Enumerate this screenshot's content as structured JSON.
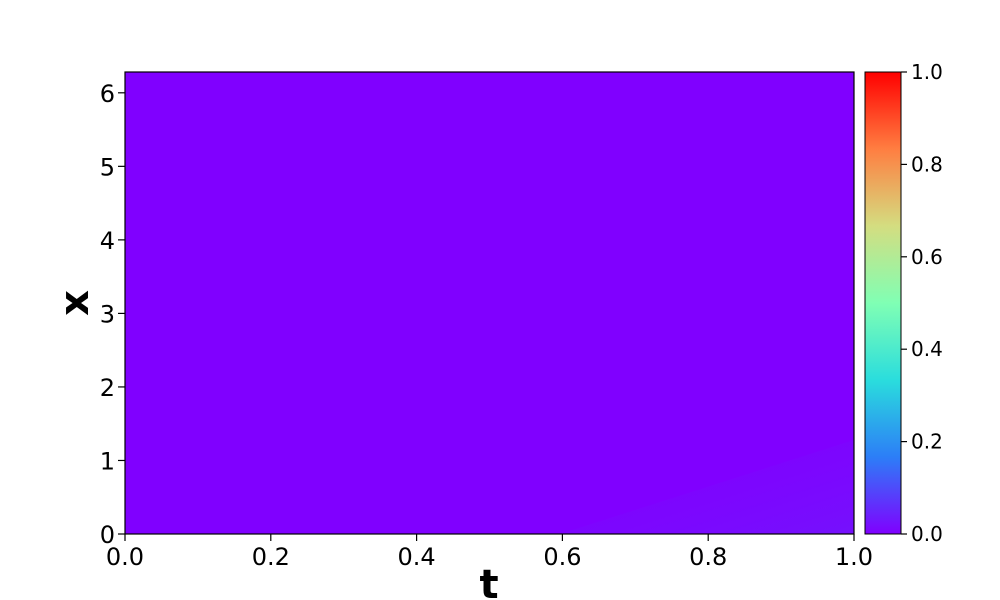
{
  "chart_data": {
    "type": "heatmap",
    "title": "",
    "xlabel": "t",
    "ylabel": "x",
    "xlim": [
      0.0,
      1.0
    ],
    "ylim": [
      0.0,
      6.283
    ],
    "x_ticks": [
      "0.0",
      "0.2",
      "0.4",
      "0.6",
      "0.8",
      "1.0"
    ],
    "y_ticks": [
      "0",
      "1",
      "2",
      "3",
      "4",
      "5",
      "6"
    ],
    "colormap": "rainbow",
    "colorbar": {
      "range": [
        0.0,
        1.0
      ],
      "ticks": [
        "0.0",
        "0.2",
        "0.4",
        "0.6",
        "0.8",
        "1.0"
      ]
    },
    "field_description": "values near 0.0 across entire domain, slight increase toward t=1.0, x=0",
    "grid": [
      {
        "t": 0.0,
        "x": 0.0,
        "value": 0.0
      },
      {
        "t": 0.5,
        "x": 0.0,
        "value": 0.0
      },
      {
        "t": 0.75,
        "x": 0.0,
        "value": 0.02
      },
      {
        "t": 1.0,
        "x": 0.0,
        "value": 0.04
      },
      {
        "t": 1.0,
        "x": 1.0,
        "value": 0.02
      },
      {
        "t": 1.0,
        "x": 3.0,
        "value": 0.0
      },
      {
        "t": 0.5,
        "x": 3.0,
        "value": 0.0
      },
      {
        "t": 0.0,
        "x": 6.283,
        "value": 0.0
      }
    ],
    "colors": {
      "background_field": "#8000ff",
      "rainbow_stops": [
        "#8000ff",
        "#2c7ef7",
        "#2adddd",
        "#80ffb4",
        "#d4dd80",
        "#ff7e41",
        "#ff0000"
      ]
    },
    "grid_on": false
  }
}
